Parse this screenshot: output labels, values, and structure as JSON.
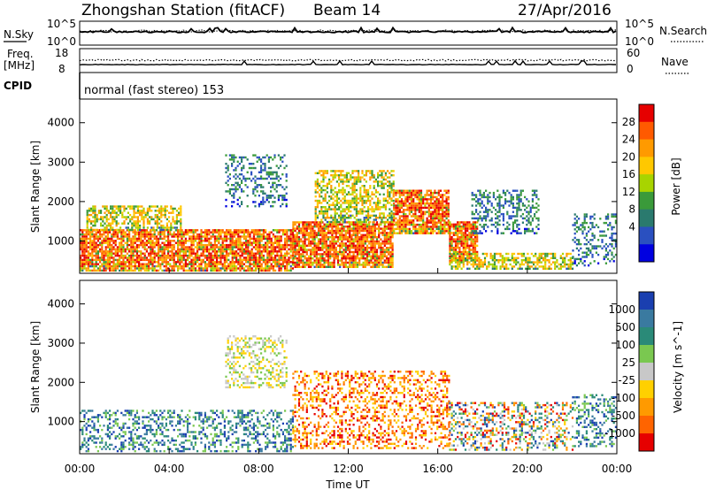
{
  "header": {
    "station": "Zhongshan Station (fitACF)",
    "beam": "Beam 14",
    "date": "27/Apr/2016"
  },
  "status_panel": {
    "nsky_label": "N.Sky",
    "nsearch_label": "N.Search",
    "nsky_ticks": [
      "10^5",
      "10^0"
    ],
    "nsearch_ticks": [
      "10^5",
      "10^0"
    ],
    "freq_label": "Freq.",
    "freq_unit": "[MHz]",
    "freq_ticks": [
      "18",
      "8"
    ],
    "nave_label": "Nave",
    "nave_ticks": [
      "60",
      "0"
    ],
    "cpid_label": "CPID",
    "cpid_value": "normal (fast stereo) 153"
  },
  "chart_data": [
    {
      "type": "heatmap",
      "name": "power",
      "xlabel": "Time UT",
      "ylabel": "Slant Range [km]",
      "xlim": [
        0,
        24
      ],
      "ylim": [
        180,
        4600
      ],
      "yticks": [
        1000,
        2000,
        3000,
        4000
      ],
      "colorbar": {
        "label": "Power [dB]",
        "ticks": [
          "28",
          "24",
          "20",
          "16",
          "12",
          "8",
          "4"
        ],
        "colors": [
          "#e60000",
          "#ff5a00",
          "#ff9a00",
          "#ffc800",
          "#a8d400",
          "#3a9a3a",
          "#2a7a6e",
          "#2a50c0",
          "#0000e0"
        ]
      },
      "echo_regions": [
        {
          "t0": 0.0,
          "t1": 9.5,
          "r0": 250,
          "r1": 1300,
          "level": "high"
        },
        {
          "t0": 0.3,
          "t1": 4.5,
          "r0": 1300,
          "r1": 1900,
          "level": "mid"
        },
        {
          "t0": 6.5,
          "t1": 9.2,
          "r0": 1900,
          "r1": 3200,
          "level": "low"
        },
        {
          "t0": 9.5,
          "t1": 14.0,
          "r0": 350,
          "r1": 1500,
          "level": "high"
        },
        {
          "t0": 10.5,
          "t1": 14.0,
          "r0": 1500,
          "r1": 2800,
          "level": "mid"
        },
        {
          "t0": 14.0,
          "t1": 16.5,
          "r0": 1200,
          "r1": 2300,
          "level": "high"
        },
        {
          "t0": 16.5,
          "t1": 17.8,
          "r0": 500,
          "r1": 1500,
          "level": "high"
        },
        {
          "t0": 16.5,
          "t1": 22.0,
          "r0": 300,
          "r1": 700,
          "level": "mid"
        },
        {
          "t0": 17.5,
          "t1": 20.5,
          "r0": 1200,
          "r1": 2300,
          "level": "low"
        },
        {
          "t0": 22.0,
          "t1": 24.0,
          "r0": 400,
          "r1": 1700,
          "level": "low"
        }
      ]
    },
    {
      "type": "heatmap",
      "name": "velocity",
      "xlabel": "Time UT",
      "ylabel": "Slant Range [km]",
      "xlim": [
        0,
        24
      ],
      "ylim": [
        180,
        4600
      ],
      "yticks": [
        1000,
        2000,
        3000,
        4000
      ],
      "xticks": [
        "00:00",
        "04:00",
        "08:00",
        "12:00",
        "16:00",
        "20:00",
        "00:00"
      ],
      "colorbar": {
        "label": "Velocity [m s^-1]",
        "ticks": [
          "1000",
          "500",
          "100",
          "25",
          "-25",
          "-100",
          "-500",
          "-1000"
        ],
        "colors": [
          "#1a3fb0",
          "#3a7aa0",
          "#2a8a78",
          "#7ac850",
          "#c8c8c8",
          "#ffd000",
          "#ff9a00",
          "#ff6400",
          "#e60000"
        ]
      },
      "echo_regions": [
        {
          "t0": 0.0,
          "t1": 9.5,
          "r0": 250,
          "r1": 1300,
          "level": "toward"
        },
        {
          "t0": 6.5,
          "t1": 9.2,
          "r0": 1900,
          "r1": 3200,
          "level": "slow"
        },
        {
          "t0": 9.5,
          "t1": 16.5,
          "r0": 300,
          "r1": 2300,
          "level": "away"
        },
        {
          "t0": 16.5,
          "t1": 22.0,
          "r0": 300,
          "r1": 1500,
          "level": "mixed"
        },
        {
          "t0": 22.0,
          "t1": 24.0,
          "r0": 400,
          "r1": 1700,
          "level": "toward"
        }
      ]
    }
  ]
}
